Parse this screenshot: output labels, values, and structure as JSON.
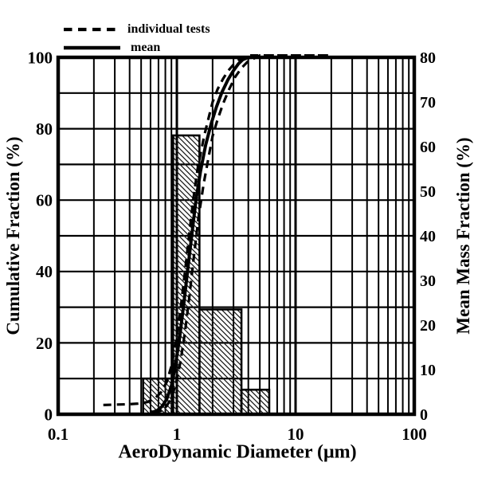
{
  "colors": {
    "ink": "#000000",
    "background": "#ffffff"
  },
  "legend": {
    "items": [
      {
        "label": "individual tests",
        "style": "dashed"
      },
      {
        "label": "mean",
        "style": "solid"
      }
    ]
  },
  "axes": {
    "x": {
      "title": "AeroDynamic Diameter (μm)",
      "scale": "log",
      "min": 0.1,
      "max": 100,
      "tick_labels": [
        "0.1",
        "1",
        "10",
        "100"
      ]
    },
    "y_left": {
      "title": "Cumulative Fraction (%)",
      "min": 0,
      "max": 100,
      "gridline_step": 10,
      "tick_labels": [
        "0",
        "20",
        "40",
        "60",
        "80",
        "100"
      ]
    },
    "y_right": {
      "title": "Mean Mass Fraction (%)",
      "min": 0,
      "max": 80,
      "tick_labels": [
        "0",
        "10",
        "20",
        "30",
        "40",
        "50",
        "60",
        "70",
        "80"
      ]
    }
  },
  "chart_data": {
    "type": "combo: hatched histogram (right axis) + cumulative log-normal curves (left axis)",
    "grid": "on",
    "legend_position": "top-left",
    "histogram": {
      "axis": "right",
      "units": "%",
      "bin_edges_um": [
        0.52,
        0.93,
        1.55,
        3.5,
        6.0
      ],
      "bins": [
        {
          "from": 0.52,
          "to": 0.93,
          "value": 8
        },
        {
          "from": 0.93,
          "to": 1.55,
          "value": 62.5
        },
        {
          "from": 1.55,
          "to": 3.5,
          "value": 23.5
        },
        {
          "from": 3.5,
          "to": 6.0,
          "value": 5.5
        }
      ]
    },
    "series": [
      {
        "name": "individual test 1",
        "style": "dashed",
        "axis": "left",
        "points": [
          [
            0.24,
            2.6
          ],
          [
            0.3,
            2.7
          ],
          [
            0.38,
            2.8
          ],
          [
            0.47,
            3.0
          ],
          [
            0.56,
            3.4
          ],
          [
            0.65,
            4.4
          ],
          [
            0.73,
            6.0
          ],
          [
            0.82,
            9.0
          ],
          [
            0.9,
            13.5
          ],
          [
            0.98,
            20.0
          ],
          [
            1.07,
            29.0
          ],
          [
            1.17,
            40.0
          ],
          [
            1.27,
            50.5
          ],
          [
            1.38,
            60.5
          ],
          [
            1.5,
            69.0
          ],
          [
            1.7,
            78.0
          ],
          [
            1.85,
            83.0
          ],
          [
            2.0,
            87.5
          ],
          [
            2.2,
            91.0
          ],
          [
            2.45,
            94.0
          ],
          [
            2.7,
            96.2
          ],
          [
            3.0,
            98.0
          ],
          [
            3.3,
            99.2
          ],
          [
            3.6,
            99.8
          ],
          [
            3.9,
            100
          ],
          [
            19,
            100
          ]
        ]
      },
      {
        "name": "individual test 2",
        "style": "dashed",
        "axis": "left",
        "points": [
          [
            0.64,
            0.3
          ],
          [
            0.74,
            1.0
          ],
          [
            0.82,
            2.3
          ],
          [
            0.9,
            4.6
          ],
          [
            0.98,
            8.5
          ],
          [
            1.07,
            14.5
          ],
          [
            1.17,
            23.0
          ],
          [
            1.28,
            33.5
          ],
          [
            1.4,
            45.0
          ],
          [
            1.52,
            55.0
          ],
          [
            1.68,
            64.5
          ],
          [
            1.85,
            72.0
          ],
          [
            2.0,
            78.0
          ],
          [
            2.2,
            82.5
          ],
          [
            2.45,
            87.0
          ],
          [
            2.75,
            91.0
          ],
          [
            3.1,
            94.5
          ],
          [
            3.5,
            97.0
          ],
          [
            3.95,
            98.8
          ],
          [
            4.4,
            99.6
          ],
          [
            5.0,
            100
          ],
          [
            19,
            100
          ]
        ]
      },
      {
        "name": "mean",
        "style": "solid",
        "axis": "left",
        "points": [
          [
            0.6,
            0.4
          ],
          [
            0.68,
            1.0
          ],
          [
            0.75,
            2.2
          ],
          [
            0.82,
            4.2
          ],
          [
            0.9,
            8.0
          ],
          [
            0.97,
            13.5
          ],
          [
            1.05,
            21
          ],
          [
            1.15,
            31.5
          ],
          [
            1.25,
            42
          ],
          [
            1.35,
            51.5
          ],
          [
            1.45,
            60
          ],
          [
            1.58,
            68
          ],
          [
            1.75,
            75.5
          ],
          [
            1.95,
            81.5
          ],
          [
            2.15,
            86
          ],
          [
            2.4,
            90.3
          ],
          [
            2.7,
            93.8
          ],
          [
            3.0,
            96.3
          ],
          [
            3.3,
            98.2
          ],
          [
            3.6,
            99.4
          ],
          [
            3.95,
            99.9
          ],
          [
            4.3,
            100
          ]
        ]
      }
    ]
  }
}
